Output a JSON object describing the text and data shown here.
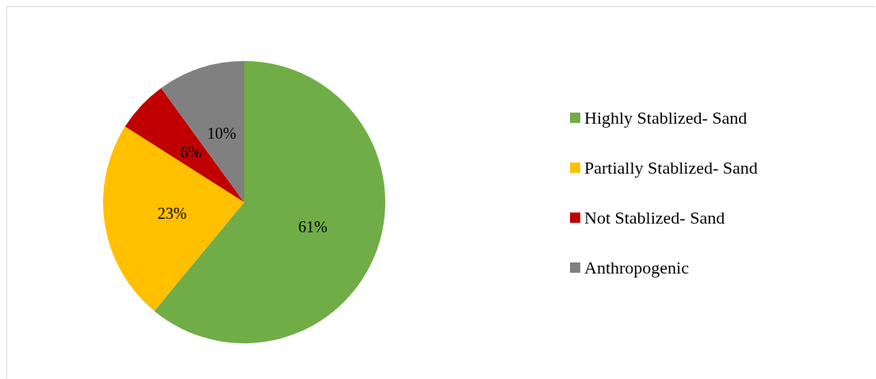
{
  "chart_data": {
    "type": "pie",
    "categories": [
      "Highly Stablized- Sand",
      "Partially Stablized- Sand",
      "Not Stablized- Sand",
      "Anthropogenic"
    ],
    "values": [
      61,
      23,
      6,
      10
    ],
    "colors": [
      "#70ad47",
      "#ffc000",
      "#c00000",
      "#808080"
    ],
    "value_labels": [
      "61%",
      "23%",
      "6%",
      "10%"
    ],
    "legend": "right"
  }
}
